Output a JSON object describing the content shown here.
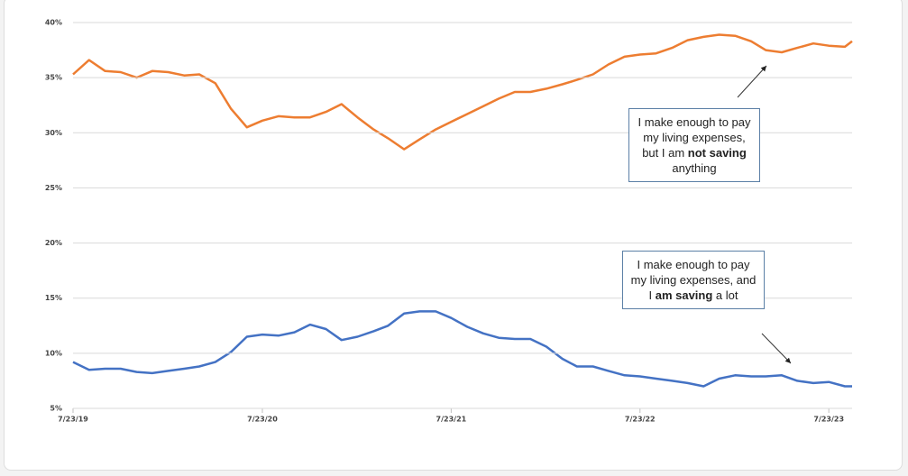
{
  "chart_data": {
    "type": "line",
    "x": [
      "7/23/19",
      "8/23/19",
      "9/23/19",
      "10/23/19",
      "11/23/19",
      "12/23/19",
      "1/23/20",
      "2/23/20",
      "3/23/20",
      "4/23/20",
      "5/23/20",
      "6/23/20",
      "7/23/20",
      "8/23/20",
      "9/23/20",
      "10/23/20",
      "11/23/20",
      "12/23/20",
      "1/23/21",
      "2/23/21",
      "3/23/21",
      "4/23/21",
      "5/23/21",
      "6/23/21",
      "7/23/21",
      "8/23/21",
      "9/23/21",
      "10/23/21",
      "11/23/21",
      "12/23/21",
      "1/23/22",
      "2/23/22",
      "3/23/22",
      "4/23/22",
      "5/23/22",
      "6/23/22",
      "7/23/22",
      "8/23/22",
      "9/23/22",
      "10/23/22",
      "11/23/22",
      "12/23/22",
      "1/23/23",
      "2/23/23",
      "3/23/23",
      "4/23/23",
      "5/23/23",
      "6/23/23",
      "7/23/23",
      "8/23/23",
      "9/6/23"
    ],
    "series": [
      {
        "color": "#ED7D31",
        "values": [
          35.3,
          36.6,
          35.6,
          35.5,
          35.0,
          35.6,
          35.5,
          35.2,
          35.3,
          34.5,
          32.2,
          30.5,
          31.1,
          31.5,
          31.4,
          31.4,
          31.9,
          32.6,
          31.4,
          30.3,
          29.5,
          28.5,
          29.4,
          30.3,
          31.0,
          31.7,
          32.4,
          33.1,
          33.7,
          33.7,
          34.0,
          34.4,
          34.8,
          35.3,
          36.2,
          36.9,
          37.1,
          37.2,
          37.7,
          38.4,
          38.7,
          38.9,
          38.8,
          38.3,
          37.5,
          37.3,
          37.7,
          38.1,
          37.9,
          37.8,
          38.3
        ]
      },
      {
        "color": "#4472C4",
        "values": [
          9.2,
          8.5,
          8.6,
          8.6,
          8.3,
          8.2,
          8.4,
          8.6,
          8.8,
          9.2,
          10.1,
          11.5,
          11.7,
          11.6,
          11.9,
          12.6,
          12.2,
          11.2,
          11.5,
          12.0,
          12.5,
          13.6,
          13.8,
          13.8,
          13.2,
          12.4,
          11.8,
          11.4,
          11.3,
          11.3,
          10.6,
          9.5,
          8.8,
          8.8,
          8.4,
          8.0,
          7.9,
          7.7,
          7.5,
          7.3,
          7.0,
          7.7,
          8.0,
          7.9,
          7.9,
          8.0,
          7.5,
          7.3,
          7.4,
          7.0,
          7.0
        ]
      }
    ],
    "xlim": [
      "7/23/19",
      "9/6/23"
    ],
    "xticks": [
      "7/23/19",
      "7/23/20",
      "7/23/21",
      "7/23/22",
      "7/23/23"
    ],
    "ylim": [
      5,
      40
    ],
    "yticks": [
      {
        "value": 5,
        "label": "5%"
      },
      {
        "value": 10,
        "label": "10%"
      },
      {
        "value": 15,
        "label": "15%"
      },
      {
        "value": 20,
        "label": "20%"
      },
      {
        "value": 25,
        "label": "25%"
      },
      {
        "value": 30,
        "label": "30%"
      },
      {
        "value": 35,
        "label": "35%"
      },
      {
        "value": 40,
        "label": "40%"
      }
    ],
    "grid": true,
    "annotations": [
      {
        "parts": [
          "I make enough to pay my living expenses, but I am ",
          "not saving",
          " anything"
        ]
      },
      {
        "parts": [
          "I make enough to pay my living expenses, and I ",
          "am saving",
          " a lot"
        ]
      }
    ]
  }
}
